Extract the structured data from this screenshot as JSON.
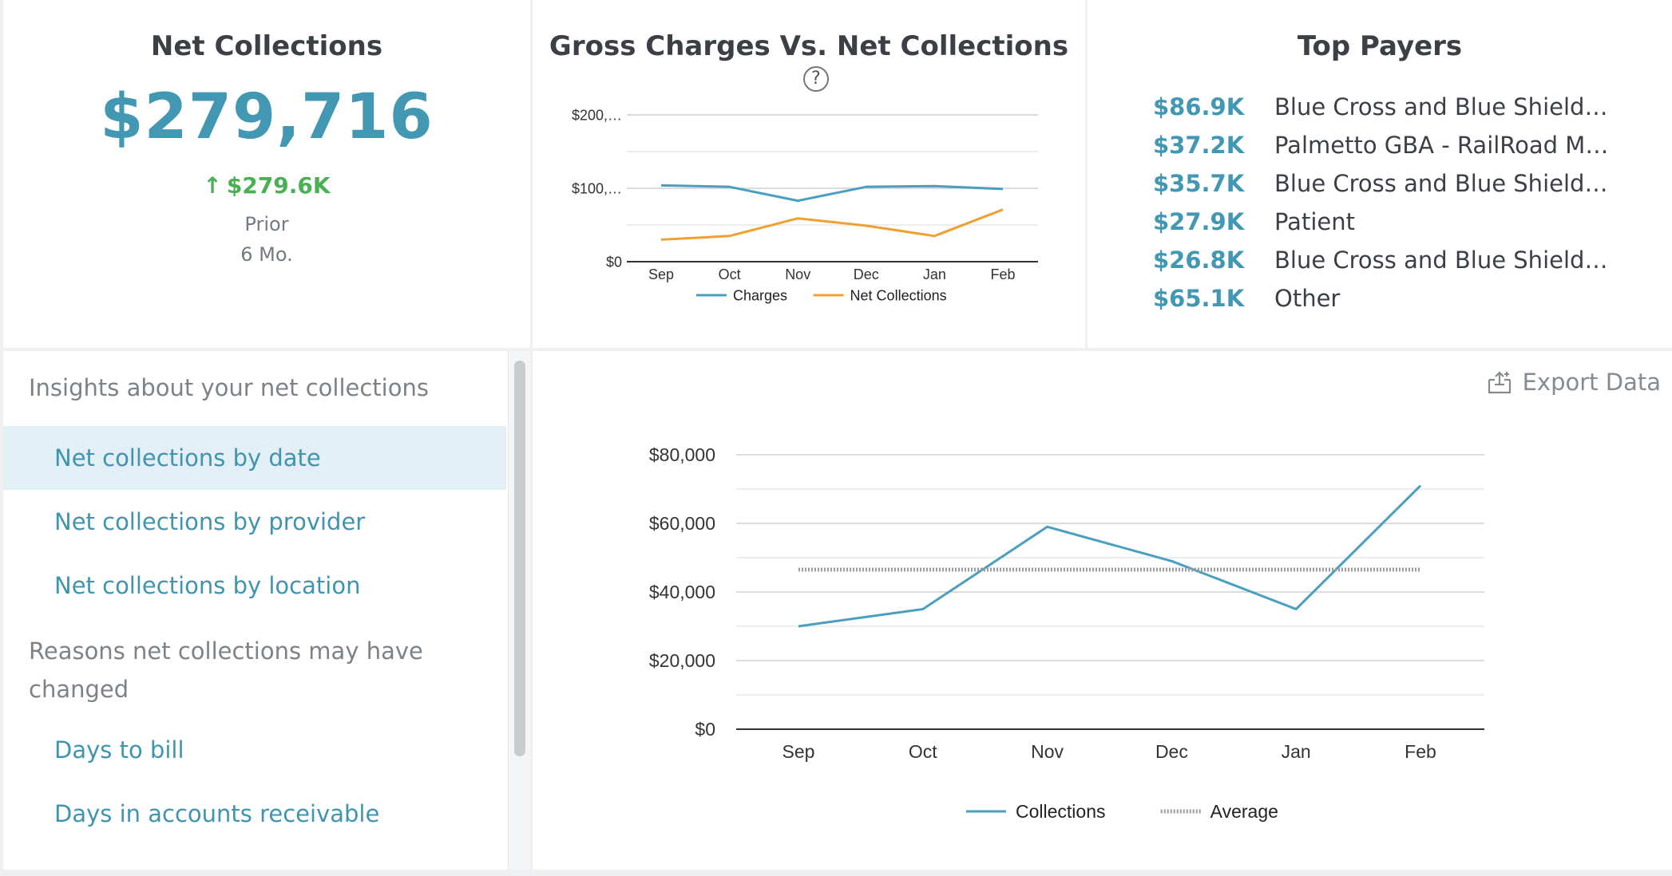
{
  "net_collections": {
    "title": "Net Collections",
    "value": "$279,716",
    "delta": "$279.6K",
    "prior_line1": "Prior",
    "prior_line2": "6 Mo."
  },
  "gross_vs_net": {
    "title": "Gross Charges Vs. Net Collections",
    "help_icon": "question-circle-icon"
  },
  "top_payers": {
    "title": "Top Payers",
    "items": [
      {
        "amount": "$86.9K",
        "name": "Blue Cross and Blue Shield …"
      },
      {
        "amount": "$37.2K",
        "name": "Palmetto GBA - RailRoad M…"
      },
      {
        "amount": "$35.7K",
        "name": "Blue Cross and Blue Shield …"
      },
      {
        "amount": "$27.9K",
        "name": "Patient"
      },
      {
        "amount": "$26.8K",
        "name": "Blue Cross and Blue Shield …"
      },
      {
        "amount": "$65.1K",
        "name": "Other"
      }
    ]
  },
  "insights": {
    "heading1": "Insights about your net collections",
    "items1": [
      "Net collections by date",
      "Net collections by provider",
      "Net collections by location"
    ],
    "active_index": 0,
    "heading2": "Reasons net collections may have changed",
    "items2": [
      "Days to bill",
      "Days in accounts receivable"
    ]
  },
  "export": {
    "label": "Export Data",
    "icon": "export-tray-icon"
  },
  "colors": {
    "accent": "#4297b3",
    "orange": "#f0a030",
    "green": "#4bb054",
    "average": "#9a9ea3"
  },
  "chart_data": [
    {
      "type": "line",
      "title": "Gross Charges Vs. Net Collections",
      "categories": [
        "Sep",
        "Oct",
        "Nov",
        "Dec",
        "Jan",
        "Feb"
      ],
      "y_ticks": [
        "$0",
        "$100,…",
        "$200,…"
      ],
      "ylim": [
        0,
        200000
      ],
      "grid": true,
      "legend_position": "bottom",
      "series": [
        {
          "name": "Charges",
          "color": "#4a9fc1",
          "values": [
            104000,
            102000,
            83000,
            102000,
            103000,
            99000
          ]
        },
        {
          "name": "Net Collections",
          "color": "#f0a030",
          "values": [
            30000,
            35000,
            59000,
            49000,
            35000,
            71000
          ]
        }
      ]
    },
    {
      "type": "line",
      "categories": [
        "Sep",
        "Oct",
        "Nov",
        "Dec",
        "Jan",
        "Feb"
      ],
      "y_ticks": [
        "$0",
        "$20,000",
        "$40,000",
        "$60,000",
        "$80,000"
      ],
      "ylim": [
        0,
        80000
      ],
      "grid": true,
      "legend_position": "bottom",
      "series": [
        {
          "name": "Collections",
          "color": "#4a9fc1",
          "values": [
            30000,
            35000,
            59000,
            49000,
            35000,
            71000
          ]
        },
        {
          "name": "Average",
          "color": "#9a9ea3",
          "style": "dotted",
          "values": [
            46500,
            46500,
            46500,
            46500,
            46500,
            46500
          ]
        }
      ]
    }
  ]
}
